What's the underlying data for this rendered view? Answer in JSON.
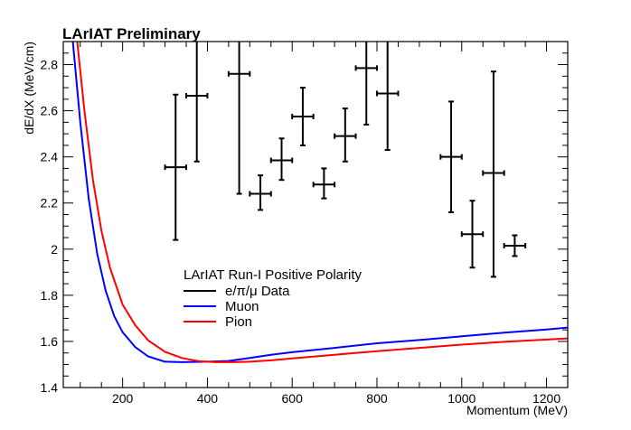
{
  "chart_data": {
    "type": "scatter",
    "title": "LArIAT Preliminary",
    "xlabel": "Momentum (MeV)",
    "ylabel": "dE/dX (MeV/cm)",
    "xlim": [
      60,
      1250
    ],
    "ylim": [
      1.4,
      2.9
    ],
    "x_ticks": [
      200,
      400,
      600,
      800,
      1000,
      1200
    ],
    "x_tick_labels": [
      "200",
      "400",
      "600",
      "800",
      "1000",
      "1200"
    ],
    "y_ticks": [
      1.4,
      1.6,
      1.8,
      2.0,
      2.2,
      2.4,
      2.6,
      2.8
    ],
    "y_tick_labels": [
      "1.4",
      "1.6",
      "1.8",
      "2",
      "2.2",
      "2.4",
      "2.6",
      "2.8"
    ],
    "grid": false,
    "legend": {
      "placement": "bottom-center",
      "header": "LArIAT Run-I Positive Polarity",
      "entries": [
        {
          "label": "e/π/μ Data",
          "color": "#000000"
        },
        {
          "label": "Muon",
          "color": "#0000ff"
        },
        {
          "label": "Pion",
          "color": "#ff0000"
        }
      ]
    },
    "series": [
      {
        "name": "e/π/μ Data",
        "kind": "points-with-errors",
        "color": "#000000",
        "points": [
          {
            "x": 325,
            "y": 2.355,
            "xerr": 25,
            "ylo": 2.04,
            "yhi": 2.67
          },
          {
            "x": 375,
            "y": 2.665,
            "xerr": 25,
            "ylo": 2.38,
            "yhi": 2.95
          },
          {
            "x": 475,
            "y": 2.76,
            "xerr": 25,
            "ylo": 2.24,
            "yhi": 2.95
          },
          {
            "x": 525,
            "y": 2.24,
            "xerr": 25,
            "ylo": 2.17,
            "yhi": 2.32
          },
          {
            "x": 575,
            "y": 2.385,
            "xerr": 25,
            "ylo": 2.3,
            "yhi": 2.48
          },
          {
            "x": 625,
            "y": 2.575,
            "xerr": 25,
            "ylo": 2.45,
            "yhi": 2.7
          },
          {
            "x": 675,
            "y": 2.28,
            "xerr": 25,
            "ylo": 2.22,
            "yhi": 2.35
          },
          {
            "x": 725,
            "y": 2.49,
            "xerr": 25,
            "ylo": 2.38,
            "yhi": 2.61
          },
          {
            "x": 775,
            "y": 2.785,
            "xerr": 25,
            "ylo": 2.54,
            "yhi": 2.95
          },
          {
            "x": 825,
            "y": 2.675,
            "xerr": 25,
            "ylo": 2.43,
            "yhi": 2.95
          },
          {
            "x": 975,
            "y": 2.4,
            "xerr": 25,
            "ylo": 2.16,
            "yhi": 2.64
          },
          {
            "x": 1025,
            "y": 2.065,
            "xerr": 25,
            "ylo": 1.92,
            "yhi": 2.21
          },
          {
            "x": 1075,
            "y": 2.33,
            "xerr": 25,
            "ylo": 1.88,
            "yhi": 2.77
          },
          {
            "x": 1125,
            "y": 2.015,
            "xerr": 25,
            "ylo": 1.97,
            "yhi": 2.06
          }
        ]
      },
      {
        "name": "Muon",
        "kind": "line",
        "color": "#0000ff",
        "x": [
          80,
          100,
          120,
          140,
          160,
          180,
          200,
          230,
          260,
          300,
          340,
          400,
          450,
          500,
          550,
          600,
          700,
          800,
          900,
          1000,
          1100,
          1200,
          1250
        ],
        "y": [
          2.95,
          2.55,
          2.22,
          1.98,
          1.82,
          1.71,
          1.64,
          1.575,
          1.535,
          1.512,
          1.51,
          1.512,
          1.515,
          1.528,
          1.542,
          1.553,
          1.572,
          1.592,
          1.606,
          1.622,
          1.638,
          1.652,
          1.66
        ]
      },
      {
        "name": "Pion",
        "kind": "line",
        "color": "#ff0000",
        "x": [
          90,
          110,
          130,
          150,
          170,
          200,
          230,
          260,
          300,
          340,
          380,
          420,
          460,
          500,
          550,
          600,
          700,
          800,
          900,
          1000,
          1100,
          1200,
          1250
        ],
        "y": [
          2.95,
          2.6,
          2.3,
          2.08,
          1.92,
          1.76,
          1.67,
          1.605,
          1.555,
          1.528,
          1.514,
          1.51,
          1.51,
          1.512,
          1.518,
          1.526,
          1.542,
          1.558,
          1.572,
          1.586,
          1.598,
          1.608,
          1.613
        ]
      }
    ]
  }
}
